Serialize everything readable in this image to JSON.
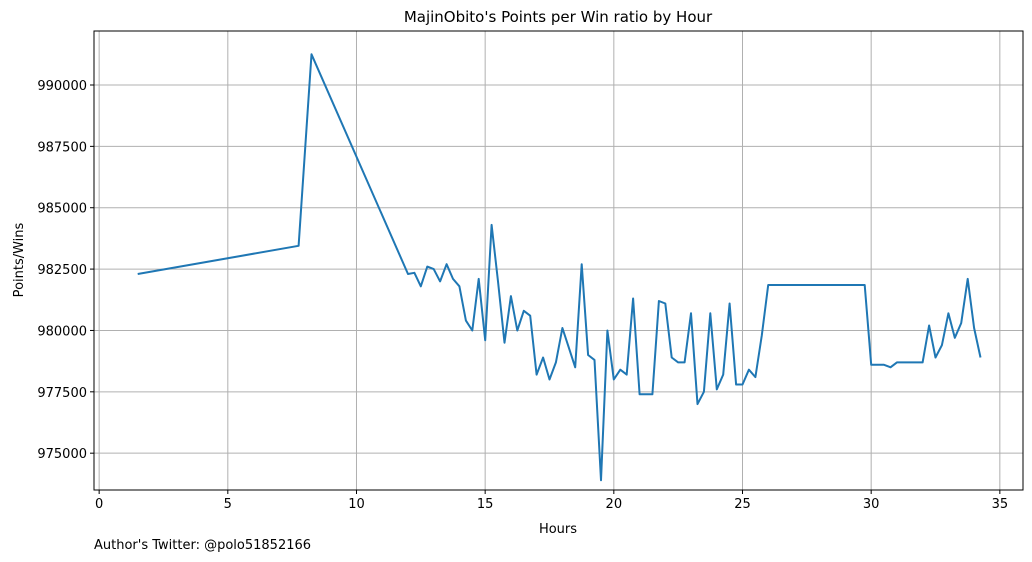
{
  "chart_data": {
    "type": "line",
    "title": "MajinObito's Points per Win ratio by Hour",
    "xlabel": "Hours",
    "ylabel": "Points/Wins",
    "xlim": [
      -0.2,
      35.9
    ],
    "ylim": [
      973500,
      992200
    ],
    "xticks": [
      0,
      5,
      10,
      15,
      20,
      25,
      30,
      35
    ],
    "yticks": [
      975000,
      977500,
      980000,
      982500,
      985000,
      987500,
      990000
    ],
    "grid": true,
    "series": [
      {
        "color": "#1f77b4",
        "x": [
          1.5,
          7.75,
          8.25,
          12.0,
          12.25,
          12.5,
          12.75,
          13.0,
          13.25,
          13.5,
          13.75,
          14.0,
          14.25,
          14.5,
          14.75,
          15.0,
          15.25,
          15.5,
          15.75,
          16.0,
          16.25,
          16.5,
          16.75,
          17.0,
          17.25,
          17.5,
          17.75,
          18.0,
          18.25,
          18.5,
          18.75,
          19.0,
          19.25,
          19.5,
          19.75,
          20.0,
          20.25,
          20.5,
          20.75,
          21.0,
          21.25,
          21.5,
          21.75,
          22.0,
          22.25,
          22.5,
          22.75,
          23.0,
          23.25,
          23.5,
          23.75,
          24.0,
          24.25,
          24.5,
          24.75,
          25.0,
          25.25,
          25.5,
          25.75,
          26.0,
          29.75,
          30.0,
          30.25,
          30.5,
          30.75,
          31.0,
          31.25,
          32.0,
          32.25,
          32.5,
          32.75,
          33.0,
          33.25,
          33.5,
          33.75,
          34.0,
          34.25
        ],
        "y": [
          982300,
          983450,
          991250,
          982300,
          982350,
          981800,
          982600,
          982500,
          982000,
          982700,
          982100,
          981800,
          980400,
          980000,
          982100,
          979600,
          984300,
          982000,
          979500,
          981400,
          980000,
          980800,
          980600,
          978200,
          978900,
          978000,
          978700,
          980100,
          979300,
          978500,
          982700,
          979000,
          978800,
          973900,
          980000,
          978000,
          978400,
          978200,
          981300,
          977400,
          977400,
          977400,
          981200,
          981100,
          978900,
          978700,
          978700,
          980700,
          977000,
          977500,
          980700,
          977600,
          978200,
          981100,
          977800,
          977800,
          978400,
          978100,
          979800,
          981850,
          981850,
          978600,
          978600,
          978600,
          978500,
          978700,
          978700,
          978700,
          980200,
          978900,
          979400,
          980700,
          979700,
          980300,
          982100,
          980100,
          978900
        ]
      }
    ]
  },
  "footer": {
    "author_note": "Author's Twitter: @polo51852166"
  }
}
